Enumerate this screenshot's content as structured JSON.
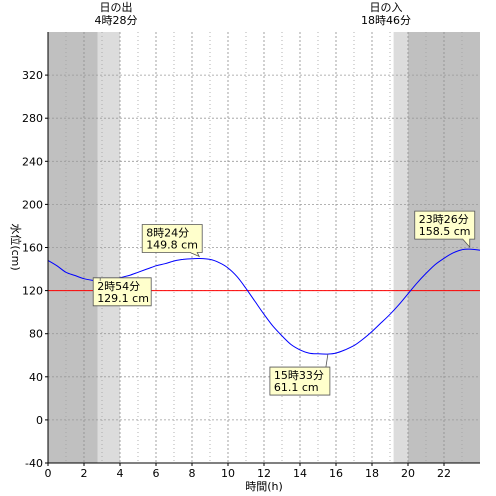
{
  "sun": {
    "rise_label": "日の出",
    "rise_time": "4時28分",
    "set_label": "日の入",
    "set_time": "18時46分"
  },
  "chart_data": {
    "type": "line",
    "xlabel": "時間(h)",
    "ylabel": "水位(cm)",
    "xlim": [
      0,
      24
    ],
    "ylim": [
      -40,
      360
    ],
    "xticks": [
      0,
      2,
      4,
      6,
      8,
      10,
      12,
      14,
      16,
      18,
      20,
      22
    ],
    "yticks": [
      -40,
      0,
      40,
      80,
      120,
      160,
      200,
      240,
      280,
      320
    ],
    "reference_line": {
      "value": 120,
      "color": "#ff0000"
    },
    "series_color": "#0000ff",
    "shading": {
      "night_end": 2.75,
      "twilight_morning_end": 4.0,
      "twilight_evening_start": 19.2,
      "night_start": 20.0,
      "night_color": "#c0c0c0",
      "twilight_color": "#dcdcdc"
    },
    "series": [
      {
        "x": [
          0,
          0.5,
          1,
          1.5,
          2,
          2.5,
          2.9,
          3.5,
          4,
          4.5,
          5,
          5.5,
          6,
          6.5,
          7,
          7.5,
          8,
          8.4,
          9,
          9.5,
          10,
          10.5,
          11,
          11.5,
          12,
          12.5,
          13,
          13.5,
          14,
          14.5,
          15,
          15.55,
          16,
          16.5,
          17,
          17.5,
          18,
          18.5,
          19,
          19.5,
          20,
          20.5,
          21,
          21.5,
          22,
          22.5,
          23,
          23.43,
          24
        ],
        "y": [
          148,
          143,
          137,
          134,
          131,
          129.5,
          129.1,
          130,
          132,
          134,
          137,
          140,
          143,
          145,
          147.5,
          149,
          149.6,
          149.8,
          149,
          146,
          141,
          133,
          122,
          110,
          98,
          87,
          78,
          70,
          65,
          62,
          61.3,
          61.1,
          62,
          65,
          69,
          75,
          82,
          90,
          98,
          107,
          117,
          127,
          136,
          144,
          150,
          155,
          158,
          158.5,
          157.5
        ]
      }
    ],
    "annotations": [
      {
        "time": "2時54分",
        "value": "129.1 cm",
        "x": 2.9,
        "y": 129.1
      },
      {
        "time": "8時24分",
        "value": "149.8 cm",
        "x": 8.4,
        "y": 149.8
      },
      {
        "time": "15時33分",
        "value": "61.1 cm",
        "x": 15.55,
        "y": 61.1
      },
      {
        "time": "23時26分",
        "value": "158.5 cm",
        "x": 23.43,
        "y": 158.5
      }
    ]
  }
}
